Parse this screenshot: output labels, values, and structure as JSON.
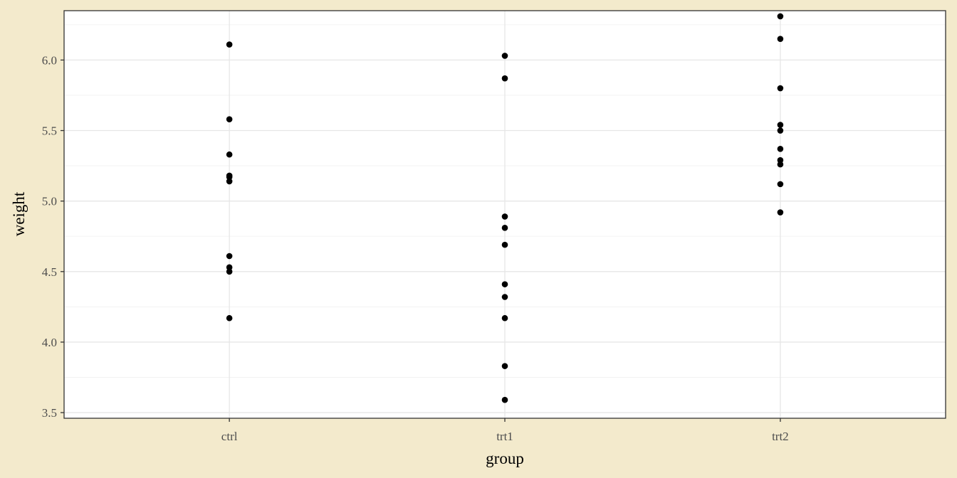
{
  "colors": {
    "background": "#F3EACC",
    "panel": "#FFFFFF",
    "grid_major": "#E6E6E6",
    "grid_minor": "#F2F2F2",
    "border": "#333333",
    "tick_text": "#4D4D4D",
    "point": "#000000"
  },
  "chart_data": {
    "type": "scatter",
    "title": "",
    "xlabel": "group",
    "ylabel": "weight",
    "categories": [
      "ctrl",
      "trt1",
      "trt2"
    ],
    "ylim": [
      3.46,
      6.35
    ],
    "y_ticks": [
      3.5,
      4.0,
      4.5,
      5.0,
      5.5,
      6.0
    ],
    "y_tick_labels": [
      "3.5",
      "4.0",
      "4.5",
      "5.0",
      "5.5",
      "6.0"
    ],
    "grid": true,
    "legend": "none",
    "points": [
      {
        "x": "ctrl",
        "y": 4.17
      },
      {
        "x": "ctrl",
        "y": 5.58
      },
      {
        "x": "ctrl",
        "y": 5.18
      },
      {
        "x": "ctrl",
        "y": 6.11
      },
      {
        "x": "ctrl",
        "y": 4.5
      },
      {
        "x": "ctrl",
        "y": 4.61
      },
      {
        "x": "ctrl",
        "y": 5.17
      },
      {
        "x": "ctrl",
        "y": 4.53
      },
      {
        "x": "ctrl",
        "y": 5.33
      },
      {
        "x": "ctrl",
        "y": 5.14
      },
      {
        "x": "trt1",
        "y": 4.81
      },
      {
        "x": "trt1",
        "y": 4.17
      },
      {
        "x": "trt1",
        "y": 4.41
      },
      {
        "x": "trt1",
        "y": 3.59
      },
      {
        "x": "trt1",
        "y": 5.87
      },
      {
        "x": "trt1",
        "y": 3.83
      },
      {
        "x": "trt1",
        "y": 6.03
      },
      {
        "x": "trt1",
        "y": 4.89
      },
      {
        "x": "trt1",
        "y": 4.32
      },
      {
        "x": "trt1",
        "y": 4.69
      },
      {
        "x": "trt2",
        "y": 6.31
      },
      {
        "x": "trt2",
        "y": 5.12
      },
      {
        "x": "trt2",
        "y": 5.54
      },
      {
        "x": "trt2",
        "y": 5.5
      },
      {
        "x": "trt2",
        "y": 5.37
      },
      {
        "x": "trt2",
        "y": 5.29
      },
      {
        "x": "trt2",
        "y": 4.92
      },
      {
        "x": "trt2",
        "y": 6.15
      },
      {
        "x": "trt2",
        "y": 5.8
      },
      {
        "x": "trt2",
        "y": 5.26
      }
    ]
  }
}
